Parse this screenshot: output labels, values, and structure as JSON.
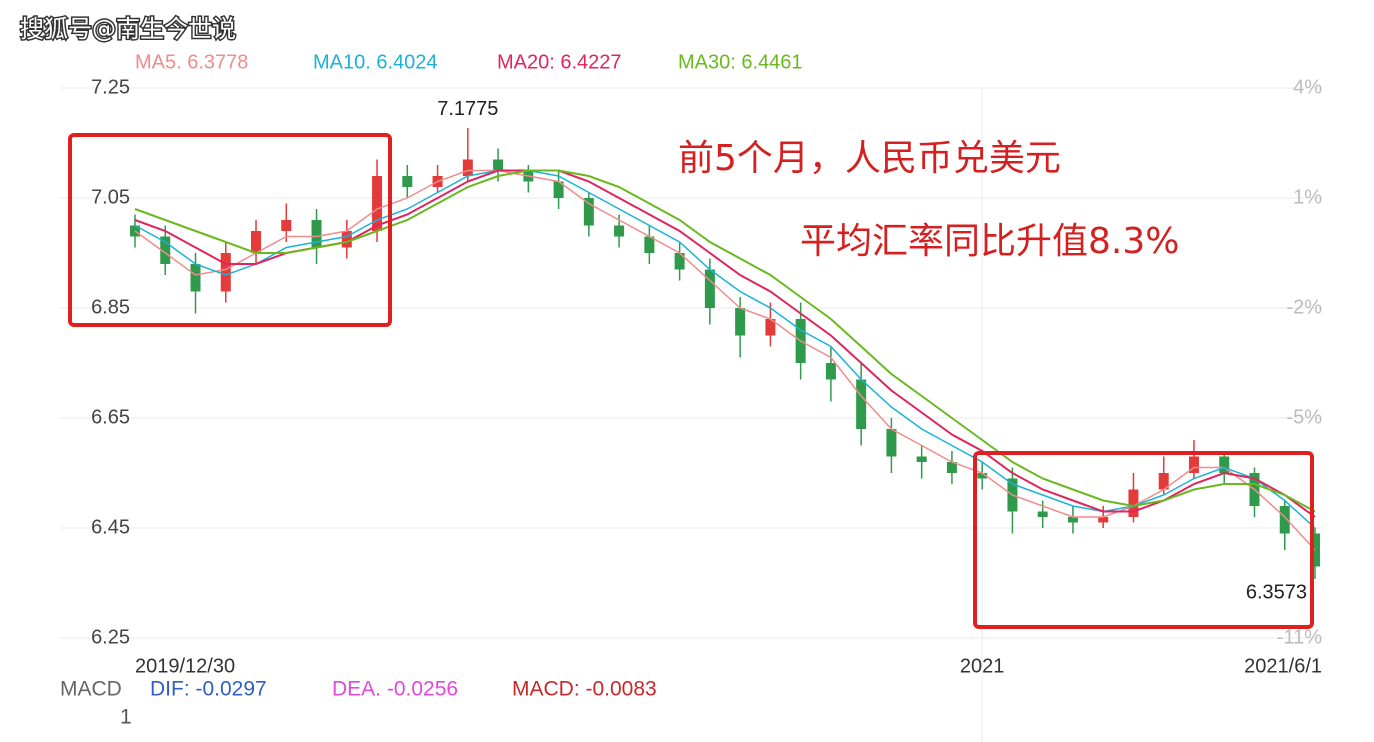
{
  "chart_data": {
    "type": "candlestick",
    "watermark": "搜狐号@南生今世说",
    "annotations": [
      "前5个月，人民币兑美元",
      "平均汇率同比升值8.3%"
    ],
    "categories": [
      "2019/12/30",
      null,
      null,
      null,
      null,
      null,
      null,
      null,
      null,
      null,
      null,
      null,
      null,
      null,
      null,
      null,
      null,
      null,
      null,
      null,
      null,
      null,
      null,
      null,
      null,
      null,
      null,
      null,
      "2021",
      null,
      null,
      null,
      null,
      null,
      null,
      null,
      null,
      null,
      null,
      "2021/6/1"
    ],
    "open": [
      7.0,
      6.98,
      6.93,
      6.88,
      6.95,
      6.99,
      7.01,
      6.96,
      6.99,
      7.09,
      7.07,
      7.09,
      7.12,
      7.1,
      7.08,
      7.05,
      7.0,
      6.98,
      6.95,
      6.92,
      6.85,
      6.8,
      6.83,
      6.75,
      6.72,
      6.63,
      6.58,
      6.57,
      6.55,
      6.54,
      6.48,
      6.47,
      6.46,
      6.47,
      6.52,
      6.55,
      6.58,
      6.55,
      6.49,
      6.44
    ],
    "high": [
      7.02,
      7.0,
      6.95,
      6.97,
      7.01,
      7.04,
      7.03,
      7.01,
      7.12,
      7.11,
      7.11,
      7.1775,
      7.14,
      7.11,
      7.1,
      7.06,
      7.02,
      7.0,
      6.97,
      6.94,
      6.87,
      6.86,
      6.86,
      6.78,
      6.75,
      6.65,
      6.6,
      6.59,
      6.57,
      6.56,
      6.5,
      6.49,
      6.49,
      6.55,
      6.58,
      6.61,
      6.59,
      6.56,
      6.5,
      6.45
    ],
    "low": [
      6.96,
      6.91,
      6.84,
      6.86,
      6.93,
      6.97,
      6.93,
      6.94,
      6.97,
      7.05,
      7.06,
      7.08,
      7.08,
      7.06,
      7.03,
      6.98,
      6.96,
      6.93,
      6.9,
      6.82,
      6.76,
      6.78,
      6.72,
      6.68,
      6.6,
      6.55,
      6.54,
      6.53,
      6.52,
      6.44,
      6.45,
      6.44,
      6.45,
      6.46,
      6.51,
      6.54,
      6.53,
      6.47,
      6.41,
      6.3573
    ],
    "close": [
      6.98,
      6.93,
      6.88,
      6.95,
      6.99,
      7.01,
      6.96,
      6.99,
      7.09,
      7.07,
      7.09,
      7.12,
      7.1,
      7.08,
      7.05,
      7.0,
      6.98,
      6.95,
      6.92,
      6.85,
      6.8,
      6.83,
      6.75,
      6.72,
      6.63,
      6.58,
      6.57,
      6.55,
      6.54,
      6.48,
      6.47,
      6.46,
      6.47,
      6.52,
      6.55,
      6.58,
      6.55,
      6.49,
      6.44,
      6.38
    ],
    "high_label_index": 11,
    "low_label_index": 39,
    "up_color": "#e33a3a",
    "down_color": "#2f9a4c",
    "series": [
      {
        "name": "MA5. 6.3778",
        "color": "#f08c8c",
        "values": [
          6.99,
          6.95,
          6.91,
          6.92,
          6.95,
          6.98,
          6.98,
          6.99,
          7.03,
          7.05,
          7.08,
          7.1,
          7.1,
          7.09,
          7.08,
          7.04,
          7.01,
          6.98,
          6.95,
          6.9,
          6.85,
          6.83,
          6.79,
          6.76,
          6.69,
          6.63,
          6.6,
          6.57,
          6.55,
          6.51,
          6.49,
          6.47,
          6.47,
          6.49,
          6.52,
          6.56,
          6.56,
          6.52,
          6.47,
          6.41
        ]
      },
      {
        "name": "MA10. 6.4024",
        "color": "#1ab3d6",
        "values": [
          7.0,
          6.97,
          6.93,
          6.91,
          6.93,
          6.96,
          6.97,
          6.98,
          7.01,
          7.03,
          7.06,
          7.09,
          7.1,
          7.1,
          7.09,
          7.06,
          7.03,
          7.0,
          6.97,
          6.92,
          6.88,
          6.85,
          6.81,
          6.78,
          6.72,
          6.67,
          6.63,
          6.6,
          6.57,
          6.53,
          6.51,
          6.49,
          6.48,
          6.49,
          6.51,
          6.54,
          6.56,
          6.54,
          6.5,
          6.45
        ]
      },
      {
        "name": "MA20: 6.4227",
        "color": "#e0245e",
        "values": [
          7.01,
          6.99,
          6.96,
          6.93,
          6.93,
          6.95,
          6.96,
          6.97,
          7.0,
          7.02,
          7.05,
          7.08,
          7.1,
          7.1,
          7.1,
          7.08,
          7.05,
          7.02,
          6.99,
          6.95,
          6.91,
          6.88,
          6.84,
          6.8,
          6.75,
          6.7,
          6.66,
          6.62,
          6.59,
          6.55,
          6.52,
          6.5,
          6.48,
          6.48,
          6.5,
          6.53,
          6.55,
          6.54,
          6.51,
          6.47
        ]
      },
      {
        "name": "MA30: 6.4461",
        "color": "#6ab820",
        "values": [
          7.03,
          7.01,
          6.99,
          6.97,
          6.95,
          6.95,
          6.96,
          6.97,
          6.99,
          7.01,
          7.04,
          7.07,
          7.09,
          7.1,
          7.1,
          7.09,
          7.07,
          7.04,
          7.01,
          6.97,
          6.94,
          6.91,
          6.87,
          6.83,
          6.78,
          6.73,
          6.69,
          6.65,
          6.61,
          6.57,
          6.54,
          6.52,
          6.5,
          6.49,
          6.5,
          6.52,
          6.53,
          6.53,
          6.51,
          6.48
        ]
      }
    ],
    "ylim": [
      6.25,
      7.25
    ],
    "yticks": [
      6.25,
      6.45,
      6.65,
      6.85,
      7.05,
      7.25
    ],
    "y2lim": [
      -11,
      4
    ],
    "y2ticks": [
      {
        "value": 4,
        "label": "4%"
      },
      {
        "value": 1,
        "label": "1%"
      },
      {
        "value": -2,
        "label": "-2%"
      },
      {
        "value": -5,
        "label": "-5%"
      },
      {
        "value": -11,
        "label": "-11%"
      }
    ],
    "grid": true,
    "macd": {
      "label": "MACD",
      "scale_label": "1",
      "items": [
        {
          "text": "DIF: -0.0297",
          "color": "#2f5fc4"
        },
        {
          "text": "DEA. -0.0256",
          "color": "#e048d8"
        },
        {
          "text": "MACD: -0.0083",
          "color": "#c82828"
        }
      ]
    }
  }
}
